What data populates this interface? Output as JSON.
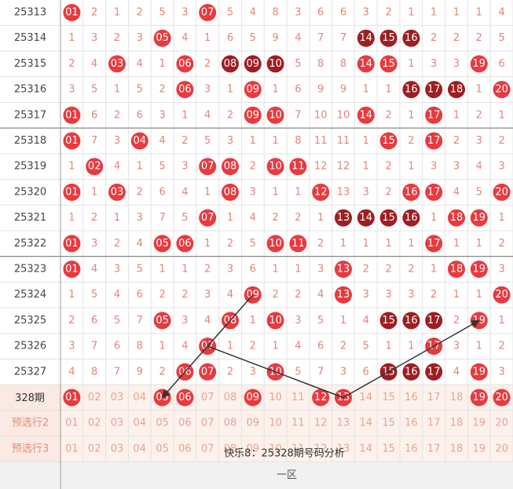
{
  "rows": [
    {
      "period": "25313",
      "cells": [
        "01",
        "2",
        "1",
        "2",
        "5",
        "3",
        "07",
        "5",
        "4",
        "8",
        "3",
        "6",
        "6",
        "3",
        "2",
        "1",
        "1",
        "1",
        "1",
        "4"
      ],
      "hits": [
        true,
        false,
        false,
        false,
        false,
        false,
        true,
        false,
        false,
        false,
        false,
        false,
        false,
        false,
        false,
        false,
        false,
        false,
        false,
        false
      ]
    },
    {
      "period": "25314",
      "cells": [
        "1",
        "3",
        "2",
        "3",
        "05",
        "4",
        "1",
        "6",
        "5",
        "9",
        "4",
        "7",
        "7",
        "14",
        "15",
        "16",
        "2",
        "2",
        "2",
        "5"
      ],
      "hits": [
        false,
        false,
        false,
        false,
        true,
        false,
        false,
        false,
        false,
        false,
        false,
        false,
        false,
        true,
        true,
        true,
        false,
        false,
        false,
        false
      ]
    },
    {
      "period": "25315",
      "cells": [
        "2",
        "4",
        "03",
        "4",
        "1",
        "06",
        "2",
        "08",
        "09",
        "10",
        "5",
        "8",
        "8",
        "14",
        "15",
        "1",
        "3",
        "3",
        "19",
        "6"
      ],
      "hits": [
        false,
        false,
        true,
        false,
        false,
        true,
        false,
        true,
        true,
        true,
        false,
        false,
        false,
        true,
        true,
        false,
        false,
        false,
        true,
        false
      ]
    },
    {
      "period": "25316",
      "cells": [
        "3",
        "5",
        "1",
        "5",
        "2",
        "06",
        "3",
        "1",
        "09",
        "1",
        "6",
        "9",
        "9",
        "1",
        "1",
        "16",
        "17",
        "18",
        "1",
        "20"
      ],
      "hits": [
        false,
        false,
        false,
        false,
        false,
        true,
        false,
        false,
        true,
        false,
        false,
        false,
        false,
        false,
        false,
        true,
        true,
        true,
        false,
        true
      ]
    },
    {
      "period": "25317",
      "cells": [
        "01",
        "6",
        "2",
        "6",
        "3",
        "1",
        "4",
        "2",
        "09",
        "10",
        "7",
        "10",
        "10",
        "14",
        "2",
        "1",
        "17",
        "1",
        "2",
        "1"
      ],
      "hits": [
        true,
        false,
        false,
        false,
        false,
        false,
        false,
        false,
        true,
        true,
        false,
        false,
        false,
        true,
        false,
        false,
        true,
        false,
        false,
        false
      ]
    },
    {
      "period": "25318",
      "cells": [
        "01",
        "7",
        "3",
        "04",
        "4",
        "2",
        "5",
        "3",
        "1",
        "1",
        "8",
        "11",
        "11",
        "1",
        "15",
        "2",
        "17",
        "2",
        "3",
        "2"
      ],
      "hits": [
        true,
        false,
        false,
        true,
        false,
        false,
        false,
        false,
        false,
        false,
        false,
        false,
        false,
        false,
        true,
        false,
        true,
        false,
        false,
        false
      ]
    },
    {
      "period": "25319",
      "cells": [
        "1",
        "02",
        "4",
        "1",
        "5",
        "3",
        "07",
        "08",
        "2",
        "10",
        "11",
        "12",
        "12",
        "1",
        "2",
        "1",
        "3",
        "3",
        "4",
        "3"
      ],
      "hits": [
        false,
        true,
        false,
        false,
        false,
        false,
        true,
        true,
        false,
        true,
        true,
        false,
        false,
        false,
        false,
        false,
        false,
        false,
        false,
        false
      ]
    },
    {
      "period": "25320",
      "cells": [
        "01",
        "1",
        "03",
        "2",
        "6",
        "4",
        "1",
        "08",
        "3",
        "1",
        "1",
        "12",
        "13",
        "3",
        "2",
        "16",
        "17",
        "4",
        "5",
        "20"
      ],
      "hits": [
        true,
        false,
        true,
        false,
        false,
        false,
        false,
        true,
        false,
        false,
        false,
        true,
        false,
        false,
        false,
        true,
        true,
        false,
        false,
        true
      ]
    },
    {
      "period": "25321",
      "cells": [
        "1",
        "2",
        "1",
        "3",
        "7",
        "5",
        "07",
        "1",
        "4",
        "2",
        "2",
        "1",
        "13",
        "14",
        "15",
        "16",
        "1",
        "18",
        "19",
        "1"
      ],
      "hits": [
        false,
        false,
        false,
        false,
        false,
        false,
        true,
        false,
        false,
        false,
        false,
        false,
        true,
        true,
        true,
        true,
        false,
        true,
        true,
        false
      ]
    },
    {
      "period": "25322",
      "cells": [
        "01",
        "3",
        "2",
        "4",
        "05",
        "06",
        "1",
        "2",
        "5",
        "10",
        "11",
        "2",
        "1",
        "1",
        "1",
        "1",
        "17",
        "1",
        "1",
        "2"
      ],
      "hits": [
        true,
        false,
        false,
        false,
        true,
        true,
        false,
        false,
        false,
        true,
        true,
        false,
        false,
        false,
        false,
        false,
        true,
        false,
        false,
        false
      ]
    },
    {
      "period": "25323",
      "cells": [
        "01",
        "4",
        "3",
        "5",
        "1",
        "1",
        "2",
        "3",
        "6",
        "1",
        "1",
        "3",
        "13",
        "2",
        "2",
        "2",
        "1",
        "18",
        "19",
        "3"
      ],
      "hits": [
        true,
        false,
        false,
        false,
        false,
        false,
        false,
        false,
        false,
        false,
        false,
        false,
        true,
        false,
        false,
        false,
        false,
        true,
        true,
        false
      ]
    },
    {
      "period": "25324",
      "cells": [
        "1",
        "5",
        "4",
        "6",
        "2",
        "2",
        "3",
        "4",
        "09",
        "2",
        "2",
        "4",
        "13",
        "3",
        "3",
        "3",
        "2",
        "1",
        "1",
        "20"
      ],
      "hits": [
        false,
        false,
        false,
        false,
        false,
        false,
        false,
        false,
        true,
        false,
        false,
        false,
        true,
        false,
        false,
        false,
        false,
        false,
        false,
        true
      ]
    },
    {
      "period": "25325",
      "cells": [
        "2",
        "6",
        "5",
        "7",
        "05",
        "3",
        "4",
        "08",
        "1",
        "10",
        "3",
        "5",
        "1",
        "4",
        "15",
        "16",
        "17",
        "2",
        "19",
        "1"
      ],
      "hits": [
        false,
        false,
        false,
        false,
        true,
        false,
        false,
        true,
        false,
        true,
        false,
        false,
        false,
        false,
        true,
        true,
        true,
        false,
        true,
        false
      ]
    },
    {
      "period": "25326",
      "cells": [
        "3",
        "7",
        "6",
        "8",
        "1",
        "4",
        "07",
        "1",
        "2",
        "1",
        "4",
        "6",
        "2",
        "5",
        "1",
        "1",
        "17",
        "3",
        "1",
        "2"
      ],
      "hits": [
        false,
        false,
        false,
        false,
        false,
        false,
        true,
        false,
        false,
        false,
        false,
        false,
        false,
        false,
        false,
        false,
        true,
        false,
        false,
        false
      ]
    },
    {
      "period": "25327",
      "cells": [
        "4",
        "8",
        "7",
        "9",
        "2",
        "06",
        "07",
        "2",
        "3",
        "10",
        "5",
        "7",
        "3",
        "6",
        "15",
        "16",
        "17",
        "4",
        "19",
        "3"
      ],
      "hits": [
        false,
        false,
        false,
        false,
        false,
        true,
        true,
        false,
        false,
        true,
        false,
        false,
        false,
        false,
        true,
        true,
        true,
        false,
        true,
        false
      ]
    }
  ],
  "prediction_rows": [
    {
      "label": "328期",
      "cells": [
        "01",
        "02",
        "03",
        "04",
        "05",
        "06",
        "07",
        "08",
        "09",
        "10",
        "11",
        "12",
        "13",
        "14",
        "15",
        "16",
        "17",
        "18",
        "19",
        "20"
      ],
      "hits": [
        true,
        false,
        false,
        false,
        true,
        true,
        false,
        false,
        true,
        false,
        false,
        true,
        true,
        false,
        false,
        false,
        false,
        false,
        true,
        true
      ]
    },
    {
      "label": "预选行2",
      "cells": [
        "01",
        "02",
        "03",
        "04",
        "05",
        "06",
        "07",
        "08",
        "09",
        "10",
        "11",
        "12",
        "13",
        "14",
        "15",
        "16",
        "17",
        "18",
        "19",
        "20"
      ],
      "hits": [
        false,
        false,
        false,
        false,
        false,
        false,
        false,
        false,
        false,
        false,
        false,
        false,
        false,
        false,
        false,
        false,
        false,
        false,
        false,
        false
      ]
    },
    {
      "label": "预选行3",
      "cells": [
        "01",
        "02",
        "03",
        "04",
        "05",
        "06",
        "07",
        "08",
        "09",
        "10",
        "11",
        "12",
        "13",
        "14",
        "15",
        "16",
        "17",
        "18",
        "19",
        "20"
      ],
      "hits": [
        false,
        false,
        false,
        false,
        false,
        false,
        false,
        false,
        false,
        false,
        false,
        false,
        false,
        false,
        false,
        false,
        false,
        false,
        false,
        false
      ]
    }
  ],
  "overlay_title": "快乐8：25328期号码分析",
  "footer": "一区"
}
